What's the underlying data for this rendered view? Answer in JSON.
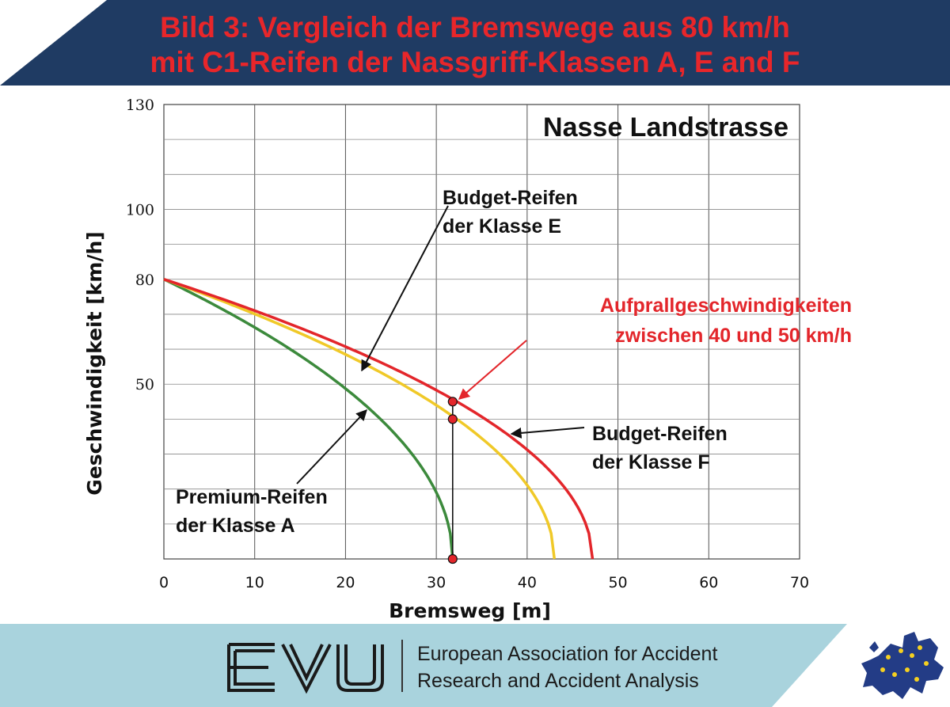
{
  "banner": {
    "title_line1": "Bild 3: Vergleich der Bremswege aus 80 km/h",
    "title_line2": "mit C1-Reifen der Nassgriff-Klassen A, E and F",
    "background_color": "#1f3b63",
    "text_color": "#e8262a"
  },
  "chart_data": {
    "type": "line",
    "title": "Nasse Landstrasse",
    "xlabel": "Bremsweg [m]",
    "ylabel": "Geschwindigkeit [km/h]",
    "xlim": [
      0,
      70
    ],
    "ylim": [
      0,
      130
    ],
    "xticks": [
      0,
      10,
      20,
      30,
      40,
      50,
      60,
      70
    ],
    "yticks": [
      50,
      80,
      100,
      130
    ],
    "grid": true,
    "series": [
      {
        "name": "Premium-Reifen der Klasse A",
        "color": "#3c8a3c",
        "stop_distance": 31.8,
        "initial_speed": 80
      },
      {
        "name": "Budget-Reifen der Klasse E",
        "color": "#f0c928",
        "stop_distance": 43.0,
        "initial_speed": 80
      },
      {
        "name": "Budget-Reifen der Klasse F",
        "color": "#e3262b",
        "stop_distance": 47.2,
        "initial_speed": 80
      }
    ],
    "impact_markers": {
      "x": 31.8,
      "y": [
        0,
        40,
        45
      ]
    },
    "annotations": [
      {
        "id": "label-e",
        "lines": [
          "Budget-Reifen",
          "der Klasse E"
        ],
        "color": "#111111"
      },
      {
        "id": "label-f",
        "lines": [
          "Budget-Reifen",
          "der Klasse F"
        ],
        "color": "#111111"
      },
      {
        "id": "label-a",
        "lines": [
          "Premium-Reifen",
          "der Klasse A"
        ],
        "color": "#111111"
      },
      {
        "id": "label-impact",
        "lines": [
          "Aufprallgeschwindigkeiten",
          "zwischen 40 und 50 km/h"
        ],
        "color": "#e3262b"
      }
    ]
  },
  "footer": {
    "logo_text": "EVU",
    "line1": "European Association for Accident",
    "line2": "Research and Accident Analysis",
    "map_alt": "europe-map"
  }
}
